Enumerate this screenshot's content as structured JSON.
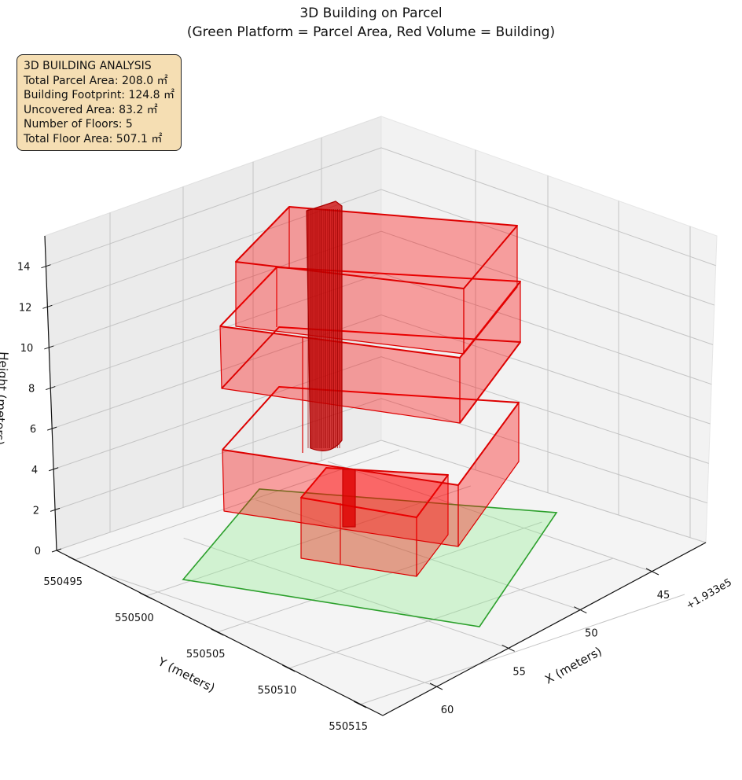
{
  "chart_data": {
    "type": "3d-bar",
    "title": "3D Building on Parcel",
    "subtitle": "(Green Platform = Parcel Area, Red Volume = Building)",
    "xlabel": "X (meters)",
    "ylabel": "Y (meters)",
    "zlabel": "Height (meters)",
    "x_offset_label": "+1.933e5",
    "x_ticks": [
      "45",
      "50",
      "55",
      "60"
    ],
    "y_ticks": [
      "550495",
      "550500",
      "550505",
      "550510",
      "550515"
    ],
    "z_ticks": [
      "0",
      "2",
      "4",
      "6",
      "8",
      "10",
      "12",
      "14"
    ],
    "zlim": [
      0,
      15.5
    ],
    "floors": 5,
    "colors": {
      "parcel": "#2ca02c",
      "parcel_fill": "#90ee90",
      "building": "#ff0000",
      "pane": "#f2f2f2"
    }
  },
  "info_box": {
    "heading": "3D BUILDING ANALYSIS",
    "lines": [
      "Total Parcel Area: 208.0 ㎡",
      "Building Footprint: 124.8 ㎡",
      "Uncovered Area: 83.2 ㎡",
      "Number of Floors: 5",
      "Total Floor Area: 507.1 ㎡"
    ]
  }
}
